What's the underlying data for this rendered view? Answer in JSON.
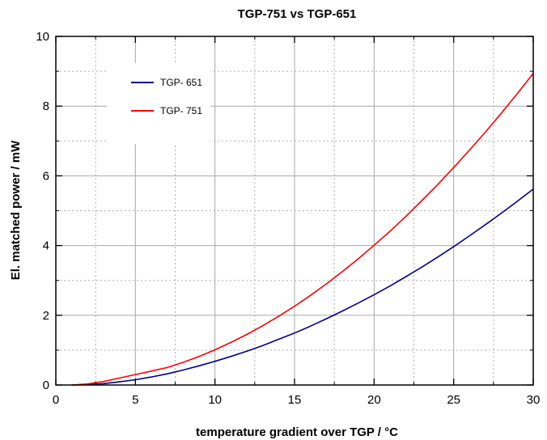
{
  "chart_data": {
    "type": "line",
    "title": "TGP-751 vs TGP-651",
    "xlabel": "temperature gradient over TGP / °C",
    "ylabel": "El. matched power / mW",
    "xlim": [
      0,
      30
    ],
    "ylim": [
      0,
      10
    ],
    "xticks": [
      0,
      5,
      10,
      15,
      20,
      25,
      30
    ],
    "yticks": [
      0,
      2,
      4,
      6,
      8,
      10
    ],
    "x_minor_step": 2.5,
    "y_minor_step": 1,
    "grid": true,
    "legend_position": "top-left",
    "series": [
      {
        "name": "TGP- 651",
        "color": "#00008b",
        "x": [
          1,
          2,
          3,
          4,
          5,
          6,
          7,
          8,
          9,
          10,
          11,
          12,
          13,
          14,
          15,
          16,
          17,
          18,
          19,
          20,
          21,
          22,
          23,
          24,
          25,
          26,
          27,
          28,
          29,
          30
        ],
        "y": [
          0.0,
          0.01,
          0.04,
          0.09,
          0.15,
          0.23,
          0.32,
          0.43,
          0.55,
          0.68,
          0.82,
          0.97,
          1.13,
          1.31,
          1.49,
          1.69,
          1.9,
          2.12,
          2.35,
          2.59,
          2.84,
          3.11,
          3.38,
          3.67,
          3.97,
          4.28,
          4.6,
          4.93,
          5.27,
          5.62
        ]
      },
      {
        "name": "TGP- 751",
        "color": "#ff0000",
        "x": [
          1,
          2,
          3,
          4,
          5,
          6,
          7,
          8,
          9,
          10,
          11,
          12,
          13,
          14,
          15,
          16,
          17,
          18,
          19,
          20,
          21,
          22,
          23,
          24,
          25,
          26,
          27,
          28,
          29,
          30
        ],
        "y": [
          0.0,
          0.03,
          0.1,
          0.2,
          0.3,
          0.4,
          0.5,
          0.65,
          0.82,
          1.01,
          1.22,
          1.45,
          1.7,
          1.97,
          2.26,
          2.57,
          2.9,
          3.25,
          3.62,
          4.01,
          4.41,
          4.84,
          5.29,
          5.75,
          6.24,
          6.74,
          7.26,
          7.8,
          8.36,
          8.94
        ]
      }
    ]
  }
}
